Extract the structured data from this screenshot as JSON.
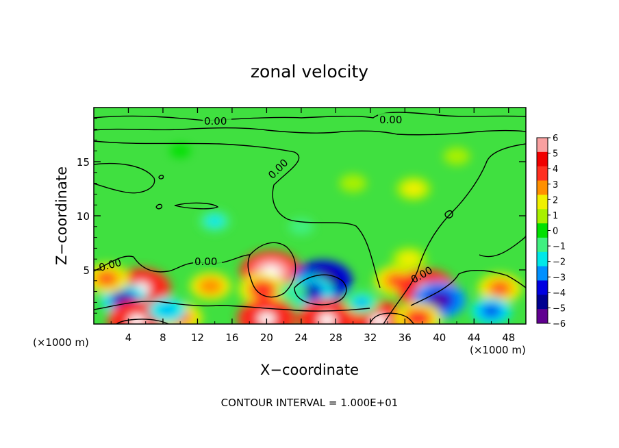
{
  "chart_data": {
    "type": "heatmap",
    "title": "zonal velocity",
    "xlabel": "X−coordinate",
    "ylabel": "Z−coordinate",
    "x_unit_left": "(×1000 m)",
    "x_unit_right": "(×1000 m)",
    "footer": "CONTOUR INTERVAL = 1.000E+01",
    "xlim": [
      0,
      50
    ],
    "ylim": [
      0,
      20
    ],
    "xticks": [
      4,
      8,
      12,
      16,
      20,
      24,
      28,
      32,
      36,
      40,
      44,
      48
    ],
    "xtick_labels": [
      "4",
      "8",
      "12",
      "16",
      "20",
      "24",
      "28",
      "32",
      "36",
      "40",
      "44",
      "48"
    ],
    "yticks": [
      5,
      10,
      15
    ],
    "ytick_labels": [
      "5",
      "10",
      "15"
    ],
    "colorbar": {
      "levels": [
        6,
        5,
        4,
        3,
        2,
        1,
        0,
        -1,
        -2,
        -3,
        -4,
        -5,
        -6
      ],
      "labels": [
        "6",
        "5",
        "4",
        "3",
        "2",
        "1",
        "0",
        "−1",
        "−2",
        "−3",
        "−4",
        "−5",
        "−6"
      ],
      "colors": [
        "#f9a0a0",
        "#f00000",
        "#ff3020",
        "#ff9000",
        "#f0f000",
        "#a8f000",
        "#00e000",
        "#40f080",
        "#00e8e8",
        "#0090ff",
        "#0000e0",
        "#000090",
        "#600090"
      ],
      "min_color": "#600090",
      "max_color": "#ffffff"
    },
    "contour_labels": [
      "0.00",
      "0.00",
      "0.00",
      "0.00",
      "0.00",
      "0.00"
    ],
    "features": [
      {
        "x": 5.5,
        "z": 3.3,
        "value": 6.5
      },
      {
        "x": 3.5,
        "z": 2.2,
        "value": -4.5
      },
      {
        "x": 1.5,
        "z": 4.2,
        "value": 4.0
      },
      {
        "x": 13.5,
        "z": 3.5,
        "value": 3.5
      },
      {
        "x": 20.5,
        "z": 4.8,
        "value": 7.0
      },
      {
        "x": 19.5,
        "z": 3.2,
        "value": 4.5
      },
      {
        "x": 26.5,
        "z": 4.0,
        "value": -6.5
      },
      {
        "x": 25.0,
        "z": 3.0,
        "value": -4.5
      },
      {
        "x": 35.0,
        "z": 4.0,
        "value": 4.0
      },
      {
        "x": 36.5,
        "z": 6.0,
        "value": 2.5
      },
      {
        "x": 38.5,
        "z": 3.2,
        "value": 6.5
      },
      {
        "x": 40.0,
        "z": 2.2,
        "value": -5.5
      },
      {
        "x": 47.0,
        "z": 3.3,
        "value": 4.0
      },
      {
        "x": 46.0,
        "z": 1.2,
        "value": -3.5
      },
      {
        "x": 5.0,
        "z": 0.3,
        "value": 6.5
      },
      {
        "x": 10.0,
        "z": 0.6,
        "value": 4.0
      },
      {
        "x": 20.0,
        "z": 0.5,
        "value": 6.5
      },
      {
        "x": 27.0,
        "z": 0.4,
        "value": 6.5
      },
      {
        "x": 33.0,
        "z": 0.3,
        "value": 6.5
      },
      {
        "x": 37.5,
        "z": 0.5,
        "value": 4.5
      },
      {
        "x": 14.0,
        "z": 9.5,
        "value": -2.0
      },
      {
        "x": 10.0,
        "z": 16.0,
        "value": 0.3
      },
      {
        "x": 37.0,
        "z": 12.5,
        "value": 2.5
      },
      {
        "x": 30.0,
        "z": 13.0,
        "value": 1.3
      },
      {
        "x": 42.0,
        "z": 15.5,
        "value": 1.2
      },
      {
        "x": 24.0,
        "z": 9.0,
        "value": -1.0
      },
      {
        "x": 23.0,
        "z": 3.0,
        "value": -1.5
      },
      {
        "x": 31.0,
        "z": 2.0,
        "value": -2.5
      },
      {
        "x": 8.5,
        "z": 1.3,
        "value": -3.0
      }
    ]
  }
}
